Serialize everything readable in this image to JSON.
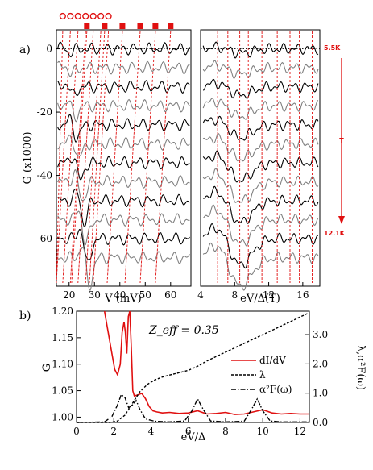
{
  "chart_data": [
    {
      "panel": "a)",
      "type": "line",
      "xlabel": "V (mV)",
      "ylabel": "G (x1000)",
      "xlim": [
        15,
        68
      ],
      "ylim": [
        -75,
        6
      ],
      "xticks": [
        "20",
        "30",
        "40",
        "50",
        "60"
      ],
      "yticks": [
        "0",
        "-20",
        "-40",
        "-60"
      ],
      "top_markers": {
        "open_circles_V": [
          17.5,
          20.5,
          23.5,
          26.5,
          29.5,
          32.5,
          35.5
        ],
        "filled_squares_V": [
          27,
          34,
          41,
          48,
          54,
          60
        ]
      },
      "series_count": 12,
      "series_offsets": [
        0,
        -6,
        -12,
        -18,
        -24,
        -30,
        -36,
        -42,
        -48,
        -54,
        -60,
        -66
      ],
      "series_colors": [
        "#000000",
        "#808080"
      ]
    },
    {
      "panel": "a) right",
      "type": "line",
      "xlabel": "eV/Δ(T)",
      "xlim": [
        4,
        18
      ],
      "ylim": [
        -75,
        6
      ],
      "xticks": [
        "4",
        "8",
        "12",
        "16"
      ],
      "vertical_lines_eVD": [
        6,
        7.2,
        8.6,
        9.6,
        11.2,
        13.0,
        14.5,
        15.6,
        17.1
      ],
      "temperature_arrow": {
        "top": "5.5K",
        "bottom": "12.1K",
        "label": "T"
      }
    },
    {
      "panel": "b)",
      "type": "line",
      "xlabel": "eV/Δ",
      "ylabel": "G",
      "ylabel_right": "λ,α²F(ω)",
      "annotation": "Z_eff = 0.35",
      "xlim": [
        0,
        12.5
      ],
      "ylim": [
        0.99,
        1.2
      ],
      "ylim_right": [
        0,
        3.8
      ],
      "xticks": [
        "0",
        "2",
        "4",
        "6",
        "8",
        "10",
        "12"
      ],
      "yticks": [
        "1.00",
        "1.05",
        "1.10",
        "1.15",
        "1.20"
      ],
      "yticks_right": [
        "0.0",
        "1.0",
        "2.0",
        "3.0"
      ],
      "series": [
        {
          "name": "dI/dV",
          "color": "#e01010",
          "style": "solid",
          "axis": "left",
          "x": [
            1.5,
            1.7,
            1.9,
            2.05,
            2.2,
            2.35,
            2.45,
            2.55,
            2.62,
            2.7,
            2.78,
            2.86,
            2.94,
            3.02,
            3.1,
            3.3,
            3.5,
            3.7,
            3.9,
            4.1,
            4.3,
            4.6,
            5.0,
            5.5,
            6.0,
            6.5,
            7.0,
            7.5,
            8.0,
            8.5,
            9.0,
            9.5,
            10.0,
            10.5,
            11.0,
            11.5,
            12.0,
            12.5
          ],
          "y": [
            1.2,
            1.16,
            1.12,
            1.09,
            1.08,
            1.1,
            1.16,
            1.18,
            1.16,
            1.12,
            1.19,
            1.2,
            1.13,
            1.05,
            1.04,
            1.042,
            1.045,
            1.035,
            1.02,
            1.012,
            1.01,
            1.008,
            1.009,
            1.007,
            1.008,
            1.012,
            1.006,
            1.007,
            1.009,
            1.005,
            1.006,
            1.01,
            1.014,
            1.008,
            1.006,
            1.007,
            1.006,
            1.006
          ]
        },
        {
          "name": "λ",
          "color": "#000000",
          "style": "dashed",
          "axis": "right",
          "x": [
            0,
            1.8,
            2.2,
            2.6,
            3.0,
            3.4,
            3.8,
            4.2,
            4.6,
            5.0,
            5.5,
            6.0,
            6.5,
            7.0,
            8.0,
            9.0,
            10.0,
            11.0,
            12.0,
            12.5
          ],
          "y": [
            0,
            0,
            0.05,
            0.25,
            0.65,
            1.05,
            1.3,
            1.45,
            1.55,
            1.62,
            1.7,
            1.78,
            1.92,
            2.1,
            2.4,
            2.7,
            3.0,
            3.3,
            3.6,
            3.75
          ]
        },
        {
          "name": "α²F(ω)",
          "color": "#000000",
          "style": "dashdot",
          "axis": "right",
          "x": [
            0,
            1.5,
            1.9,
            2.2,
            2.4,
            2.6,
            2.8,
            3.0,
            3.2,
            3.4,
            3.7,
            4.2,
            5.0,
            5.8,
            6.2,
            6.5,
            6.8,
            7.2,
            8.0,
            9.0,
            9.4,
            9.7,
            10.0,
            10.4,
            11.0,
            12.5
          ],
          "y": [
            0,
            0.02,
            0.2,
            0.6,
            0.95,
            0.85,
            0.5,
            0.6,
            0.75,
            0.45,
            0.12,
            0.04,
            0.02,
            0.05,
            0.4,
            0.8,
            0.45,
            0.05,
            0.02,
            0.04,
            0.45,
            0.8,
            0.4,
            0.05,
            0.02,
            0.02
          ]
        }
      ]
    }
  ]
}
